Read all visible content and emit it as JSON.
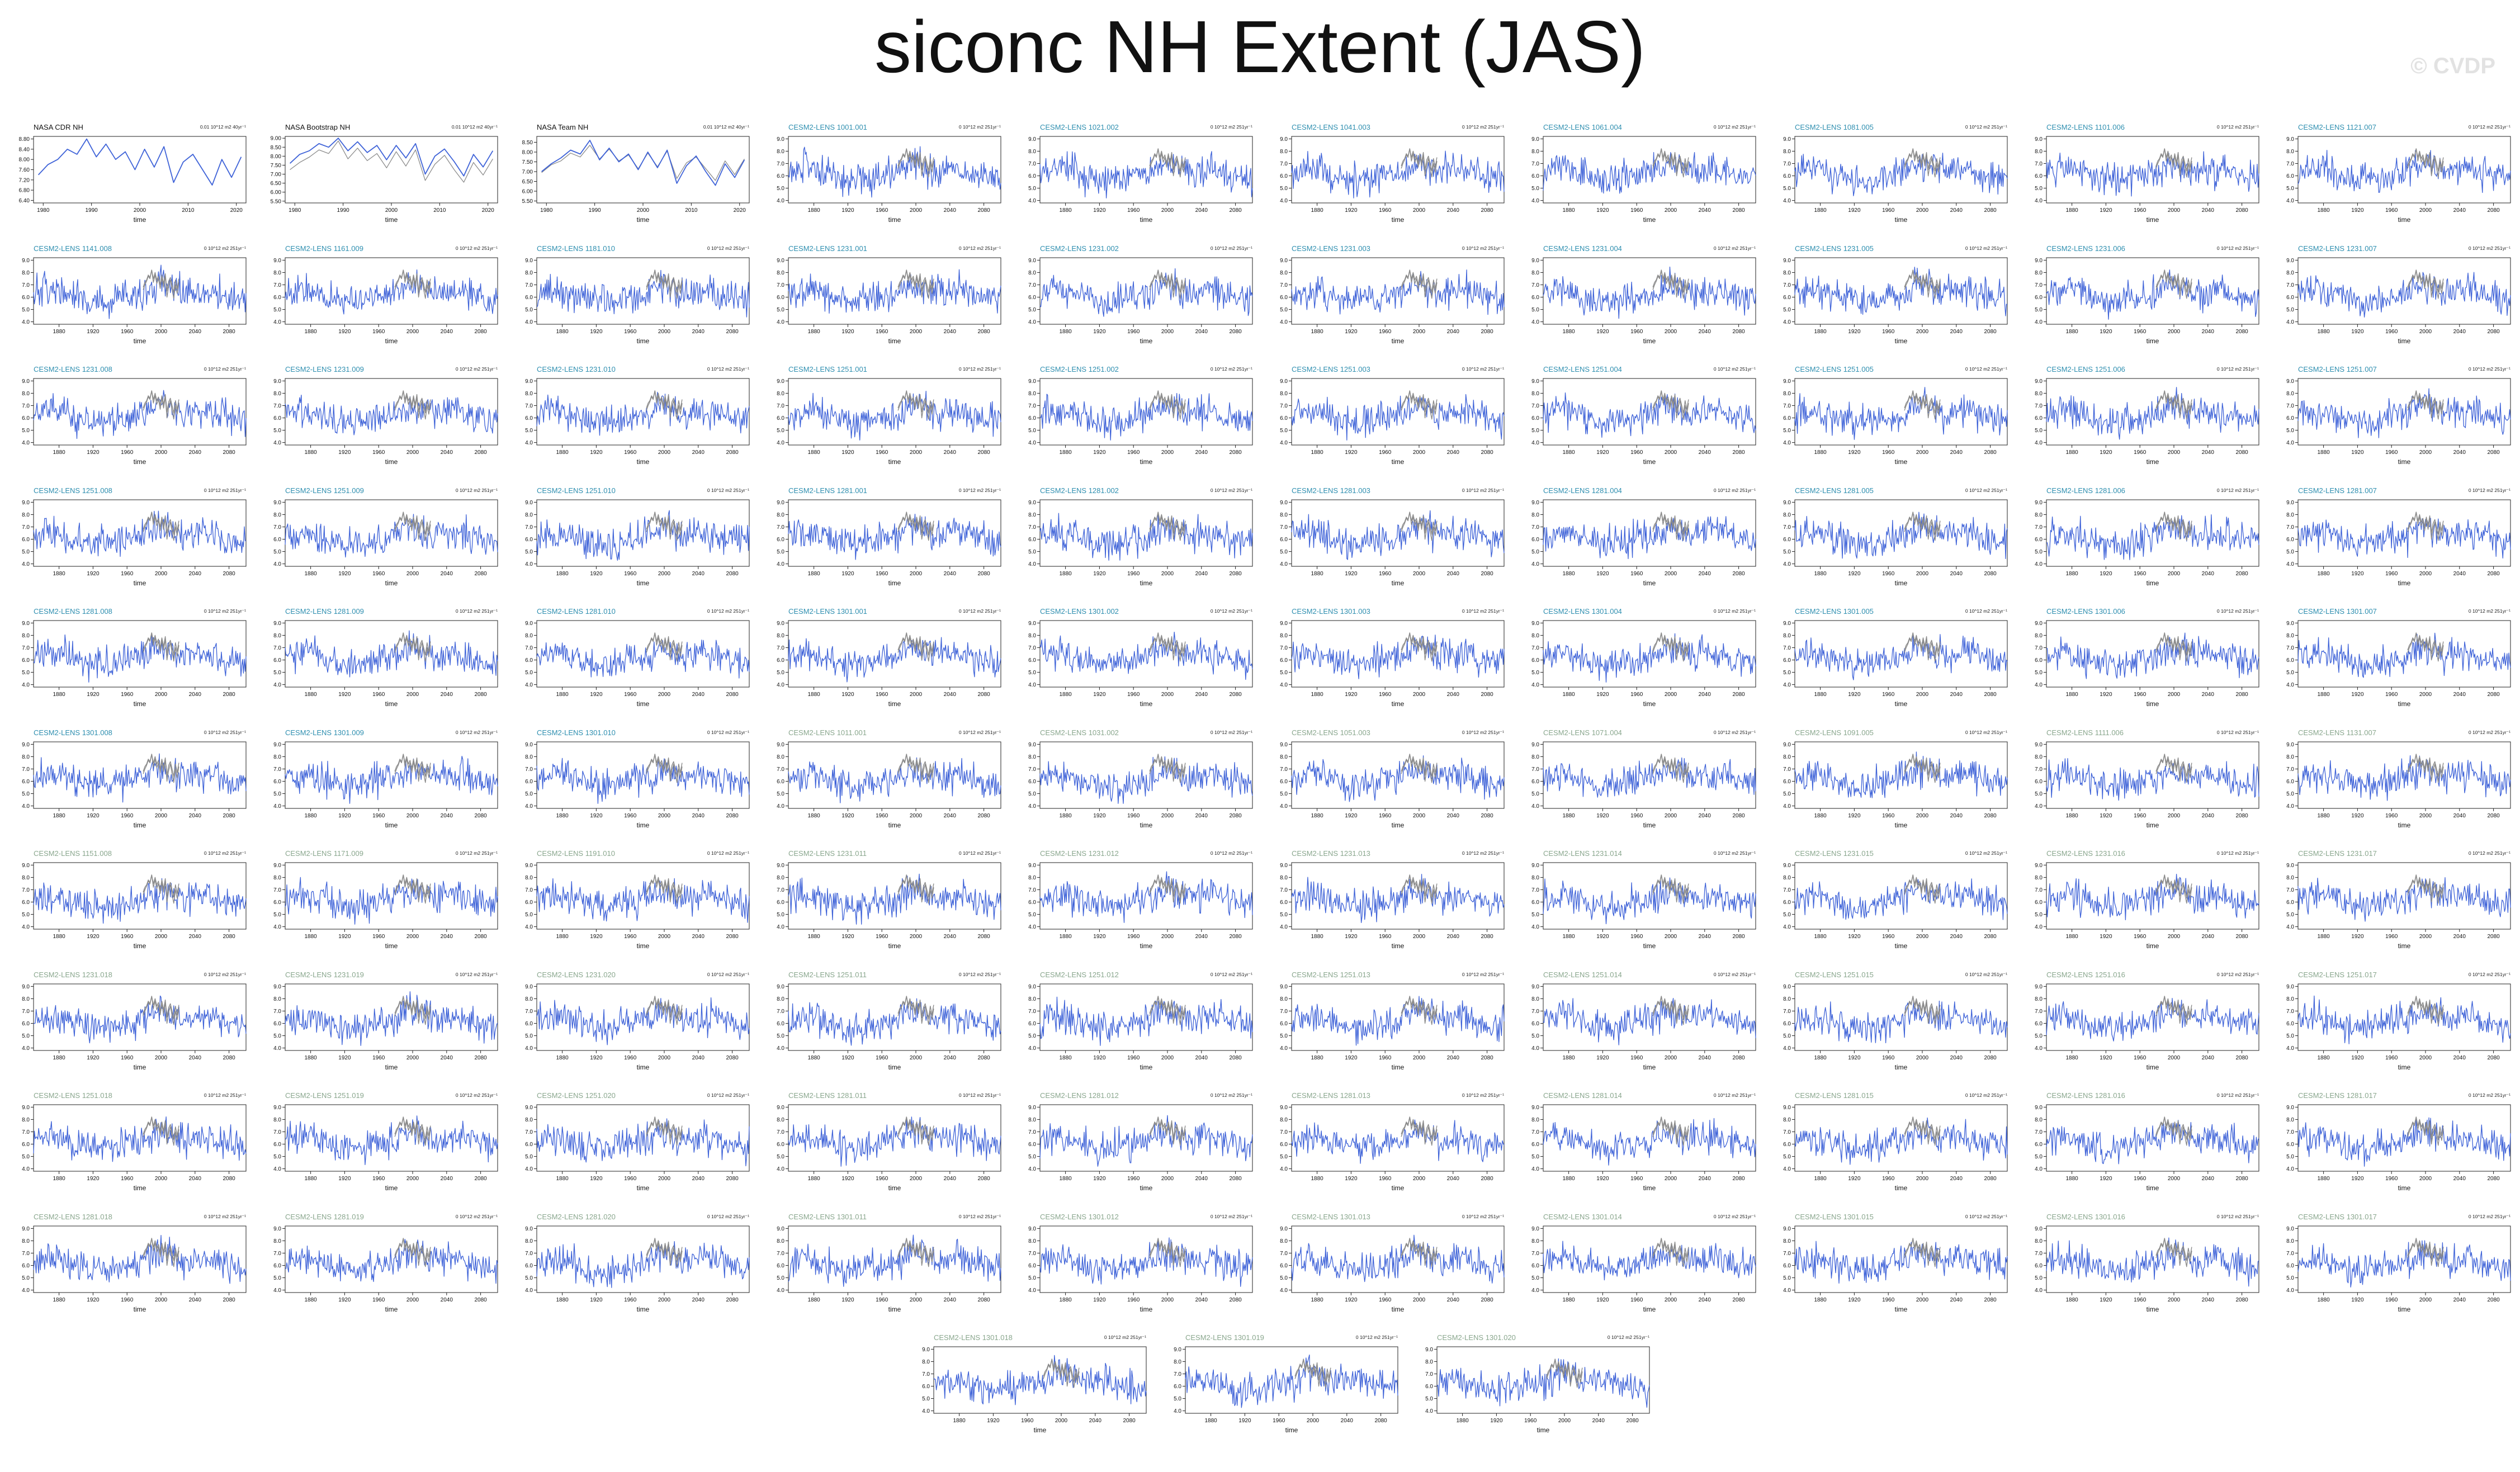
{
  "page": {
    "title": "siconc NH Extent (JAS)",
    "watermark": "© CVDP"
  },
  "style": {
    "model_color": "#3f63d8",
    "obs_overlay_color": "#8c8c8c",
    "obs_title_color": "#111111",
    "model_title_color_a": "#2f8fb0",
    "model_title_color_b": "#8aa78e"
  },
  "panels": [
    {
      "id": "NASA CDR NH",
      "kind": "obs",
      "units": "0.01 10^12 m2 40yr⁻¹",
      "xticks": [
        1980,
        1990,
        2000,
        2010,
        2020
      ],
      "xlim": [
        1978,
        2022
      ],
      "yticks": [
        "6.40",
        "6.80",
        "7.20",
        "7.60",
        "8.00",
        "8.40",
        "8.80"
      ],
      "ylim": [
        6.3,
        8.9
      ],
      "xlabel": "time"
    },
    {
      "id": "NASA Bootstrap NH",
      "kind": "obs",
      "units": "0.01 10^12 m2 40yr⁻¹",
      "xticks": [
        1980,
        1990,
        2000,
        2010,
        2020
      ],
      "xlim": [
        1978,
        2022
      ],
      "yticks": [
        "5.50",
        "6.00",
        "6.50",
        "7.00",
        "7.50",
        "8.00",
        "8.50",
        "9.00"
      ],
      "ylim": [
        5.4,
        9.1
      ],
      "xlabel": "time"
    },
    {
      "id": "NASA Team NH",
      "kind": "obs",
      "units": "0.01 10^12 m2 40yr⁻¹",
      "xticks": [
        1980,
        1990,
        2000,
        2010,
        2020
      ],
      "xlim": [
        1978,
        2022
      ],
      "yticks": [
        "5.50",
        "6.00",
        "6.50",
        "7.00",
        "7.50",
        "8.00",
        "8.50"
      ],
      "ylim": [
        5.4,
        8.8
      ],
      "xlabel": "time"
    },
    {
      "id": "CESM2-LENS 1001.001"
    },
    {
      "id": "CESM2-LENS 1021.002"
    },
    {
      "id": "CESM2-LENS 1041.003"
    },
    {
      "id": "CESM2-LENS 1061.004"
    },
    {
      "id": "CESM2-LENS 1081.005"
    },
    {
      "id": "CESM2-LENS 1101.006"
    },
    {
      "id": "CESM2-LENS 1121.007"
    },
    {
      "id": "CESM2-LENS 1141.008"
    },
    {
      "id": "CESM2-LENS 1161.009"
    },
    {
      "id": "CESM2-LENS 1181.010"
    },
    {
      "id": "CESM2-LENS 1231.001"
    },
    {
      "id": "CESM2-LENS 1231.002"
    },
    {
      "id": "CESM2-LENS 1231.003"
    },
    {
      "id": "CESM2-LENS 1231.004"
    },
    {
      "id": "CESM2-LENS 1231.005"
    },
    {
      "id": "CESM2-LENS 1231.006"
    },
    {
      "id": "CESM2-LENS 1231.007"
    },
    {
      "id": "CESM2-LENS 1231.008"
    },
    {
      "id": "CESM2-LENS 1231.009"
    },
    {
      "id": "CESM2-LENS 1231.010"
    },
    {
      "id": "CESM2-LENS 1251.001"
    },
    {
      "id": "CESM2-LENS 1251.002"
    },
    {
      "id": "CESM2-LENS 1251.003"
    },
    {
      "id": "CESM2-LENS 1251.004"
    },
    {
      "id": "CESM2-LENS 1251.005"
    },
    {
      "id": "CESM2-LENS 1251.006"
    },
    {
      "id": "CESM2-LENS 1251.007"
    },
    {
      "id": "CESM2-LENS 1251.008"
    },
    {
      "id": "CESM2-LENS 1251.009"
    },
    {
      "id": "CESM2-LENS 1251.010"
    },
    {
      "id": "CESM2-LENS 1281.001"
    },
    {
      "id": "CESM2-LENS 1281.002"
    },
    {
      "id": "CESM2-LENS 1281.003"
    },
    {
      "id": "CESM2-LENS 1281.004"
    },
    {
      "id": "CESM2-LENS 1281.005"
    },
    {
      "id": "CESM2-LENS 1281.006"
    },
    {
      "id": "CESM2-LENS 1281.007"
    },
    {
      "id": "CESM2-LENS 1281.008"
    },
    {
      "id": "CESM2-LENS 1281.009"
    },
    {
      "id": "CESM2-LENS 1281.010"
    },
    {
      "id": "CESM2-LENS 1301.001"
    },
    {
      "id": "CESM2-LENS 1301.002"
    },
    {
      "id": "CESM2-LENS 1301.003"
    },
    {
      "id": "CESM2-LENS 1301.004"
    },
    {
      "id": "CESM2-LENS 1301.005"
    },
    {
      "id": "CESM2-LENS 1301.006"
    },
    {
      "id": "CESM2-LENS 1301.007"
    },
    {
      "id": "CESM2-LENS 1301.008"
    },
    {
      "id": "CESM2-LENS 1301.009"
    },
    {
      "id": "CESM2-LENS 1301.010"
    },
    {
      "id": "CESM2-LENS 1011.001",
      "tc": "b"
    },
    {
      "id": "CESM2-LENS 1031.002",
      "tc": "b"
    },
    {
      "id": "CESM2-LENS 1051.003",
      "tc": "b"
    },
    {
      "id": "CESM2-LENS 1071.004",
      "tc": "b"
    },
    {
      "id": "CESM2-LENS 1091.005",
      "tc": "b"
    },
    {
      "id": "CESM2-LENS 1111.006",
      "tc": "b"
    },
    {
      "id": "CESM2-LENS 1131.007",
      "tc": "b"
    },
    {
      "id": "CESM2-LENS 1151.008",
      "tc": "b"
    },
    {
      "id": "CESM2-LENS 1171.009",
      "tc": "b"
    },
    {
      "id": "CESM2-LENS 1191.010",
      "tc": "b"
    },
    {
      "id": "CESM2-LENS 1231.011",
      "tc": "b"
    },
    {
      "id": "CESM2-LENS 1231.012",
      "tc": "b"
    },
    {
      "id": "CESM2-LENS 1231.013",
      "tc": "b"
    },
    {
      "id": "CESM2-LENS 1231.014",
      "tc": "b"
    },
    {
      "id": "CESM2-LENS 1231.015",
      "tc": "b"
    },
    {
      "id": "CESM2-LENS 1231.016",
      "tc": "b"
    },
    {
      "id": "CESM2-LENS 1231.017",
      "tc": "b"
    },
    {
      "id": "CESM2-LENS 1231.018",
      "tc": "b"
    },
    {
      "id": "CESM2-LENS 1231.019",
      "tc": "b"
    },
    {
      "id": "CESM2-LENS 1231.020",
      "tc": "b"
    },
    {
      "id": "CESM2-LENS 1251.011",
      "tc": "b"
    },
    {
      "id": "CESM2-LENS 1251.012",
      "tc": "b"
    },
    {
      "id": "CESM2-LENS 1251.013",
      "tc": "b"
    },
    {
      "id": "CESM2-LENS 1251.014",
      "tc": "b"
    },
    {
      "id": "CESM2-LENS 1251.015",
      "tc": "b"
    },
    {
      "id": "CESM2-LENS 1251.016",
      "tc": "b"
    },
    {
      "id": "CESM2-LENS 1251.017",
      "tc": "b"
    },
    {
      "id": "CESM2-LENS 1251.018",
      "tc": "b"
    },
    {
      "id": "CESM2-LENS 1251.019",
      "tc": "b"
    },
    {
      "id": "CESM2-LENS 1251.020",
      "tc": "b"
    },
    {
      "id": "CESM2-LENS 1281.011",
      "tc": "b"
    },
    {
      "id": "CESM2-LENS 1281.012",
      "tc": "b"
    },
    {
      "id": "CESM2-LENS 1281.013",
      "tc": "b"
    },
    {
      "id": "CESM2-LENS 1281.014",
      "tc": "b"
    },
    {
      "id": "CESM2-LENS 1281.015",
      "tc": "b"
    },
    {
      "id": "CESM2-LENS 1281.016",
      "tc": "b"
    },
    {
      "id": "CESM2-LENS 1281.017",
      "tc": "b"
    },
    {
      "id": "CESM2-LENS 1281.018",
      "tc": "b"
    },
    {
      "id": "CESM2-LENS 1281.019",
      "tc": "b"
    },
    {
      "id": "CESM2-LENS 1281.020",
      "tc": "b"
    },
    {
      "id": "CESM2-LENS 1301.011",
      "tc": "b"
    },
    {
      "id": "CESM2-LENS 1301.012",
      "tc": "b"
    },
    {
      "id": "CESM2-LENS 1301.013",
      "tc": "b"
    },
    {
      "id": "CESM2-LENS 1301.014",
      "tc": "b"
    },
    {
      "id": "CESM2-LENS 1301.015",
      "tc": "b"
    },
    {
      "id": "CESM2-LENS 1301.016",
      "tc": "b"
    },
    {
      "id": "CESM2-LENS 1301.017",
      "tc": "b"
    },
    {
      "id": "CESM2-LENS 1301.018",
      "tc": "b"
    },
    {
      "id": "CESM2-LENS 1301.019",
      "tc": "b"
    },
    {
      "id": "CESM2-LENS 1301.020",
      "tc": "b"
    }
  ],
  "model_defaults": {
    "units": "0 10^12 m2 251yr⁻¹",
    "xticks": [
      1880,
      1920,
      1960,
      2000,
      2040,
      2080
    ],
    "xlim": [
      1850,
      2100
    ],
    "yticks": [
      "4.0",
      "5.0",
      "6.0",
      "7.0",
      "8.0",
      "9.0"
    ],
    "ylim": [
      3.8,
      9.2
    ],
    "xlabel": "time"
  },
  "chart_data": {
    "type": "line",
    "title": "siconc NH Extent (JAS)",
    "xlabel": "time",
    "note": "Small-multiple grid of 103 line panels. Observational panels (NASA CDR NH, NASA Bootstrap NH, NASA Team NH) cover 1979–2021; CESM2-LENS ensemble member panels cover 1850–2100 with the observations overlaid in grey around 1979–2021.",
    "obs_series": {
      "NASA CDR NH": {
        "x": [
          1979,
          1981,
          1983,
          1985,
          1987,
          1989,
          1991,
          1993,
          1995,
          1997,
          1999,
          2001,
          2003,
          2005,
          2007,
          2009,
          2011,
          2013,
          2015,
          2017,
          2019,
          2021
        ],
        "y": [
          7.4,
          7.8,
          8.0,
          8.4,
          8.2,
          8.8,
          8.1,
          8.6,
          8.0,
          8.3,
          7.6,
          8.4,
          7.7,
          8.5,
          7.1,
          7.9,
          8.2,
          7.6,
          7.0,
          8.0,
          7.3,
          8.1
        ]
      },
      "NASA Bootstrap NH": {
        "x": [
          1979,
          1981,
          1983,
          1985,
          1987,
          1989,
          1991,
          1993,
          1995,
          1997,
          1999,
          2001,
          2003,
          2005,
          2007,
          2009,
          2011,
          2013,
          2015,
          2017,
          2019,
          2021
        ],
        "y": [
          7.6,
          8.1,
          8.3,
          8.7,
          8.5,
          9.0,
          8.3,
          8.8,
          8.2,
          8.6,
          7.8,
          8.6,
          7.9,
          8.7,
          7.0,
          8.0,
          8.4,
          7.7,
          6.9,
          8.1,
          7.4,
          8.3
        ]
      },
      "NASA Team NH": {
        "x": [
          1979,
          1981,
          1983,
          1985,
          1987,
          1989,
          1991,
          1993,
          1995,
          1997,
          1999,
          2001,
          2003,
          2005,
          2007,
          2009,
          2011,
          2013,
          2015,
          2017,
          2019,
          2021
        ],
        "y": [
          7.0,
          7.4,
          7.7,
          8.1,
          7.9,
          8.6,
          7.6,
          8.2,
          7.5,
          7.9,
          7.1,
          8.0,
          7.2,
          8.1,
          6.4,
          7.3,
          7.8,
          7.0,
          6.3,
          7.4,
          6.7,
          7.6
        ]
      }
    },
    "model_series_summary": "Each CESM2-LENS panel shows a noisy annual series fluctuating roughly between 4.5 and 8.5 with a dip near the mid-20th century and a peak near 2000."
  }
}
